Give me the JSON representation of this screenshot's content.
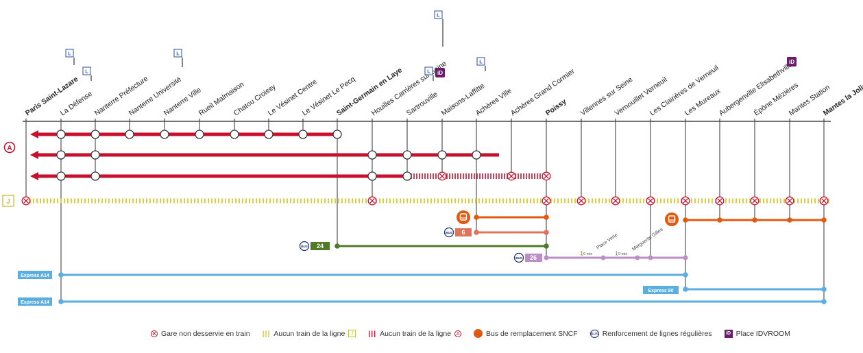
{
  "stations": [
    {
      "name": "Paris Saint-Lazare",
      "bold": true
    },
    {
      "name": "La Défense",
      "bold": false
    },
    {
      "name": "Nanterre Préfecture",
      "bold": false
    },
    {
      "name": "Nanterre Université",
      "bold": false
    },
    {
      "name": "Nanterre Ville",
      "bold": false
    },
    {
      "name": "Rueil Malmaison",
      "bold": false
    },
    {
      "name": "Chatou Croissy",
      "bold": false
    },
    {
      "name": "Le Vésinet Centre",
      "bold": false
    },
    {
      "name": "Le Vésinet Le Pecq",
      "bold": false
    },
    {
      "name": "Saint-Germain en Laye",
      "bold": true
    },
    {
      "name": "Houilles Carrières sur Seine",
      "bold": false
    },
    {
      "name": "Sartrouville",
      "bold": false
    },
    {
      "name": "Maisons-Laffitte",
      "bold": false
    },
    {
      "name": "Achères Ville",
      "bold": false
    },
    {
      "name": "Achères Grand Cormier",
      "bold": false
    },
    {
      "name": "Poissy",
      "bold": true
    },
    {
      "name": "Villennes sur Seine",
      "bold": false
    },
    {
      "name": "Vernouillet Verneuil",
      "bold": false
    },
    {
      "name": "Les Clairières de Verneuil",
      "bold": false
    },
    {
      "name": "Les Mureaux",
      "bold": false
    },
    {
      "name": "Aubergenville Elisabethville",
      "bold": false
    },
    {
      "name": "Épône Mézières",
      "bold": false
    },
    {
      "name": "Mantes Station",
      "bold": false
    },
    {
      "name": "Mantes la Jolie",
      "bold": true
    }
  ],
  "line_badges": {
    "rer_a": "A",
    "line_j": "J",
    "line_l": "L",
    "idvroom": "iD"
  },
  "bus_routes": [
    {
      "label": "6",
      "color": "#e0745a"
    },
    {
      "label": "24",
      "color": "#4f7a28"
    },
    {
      "label": "26",
      "color": "#b98fc6"
    }
  ],
  "express_labels": {
    "a14_top": "Express A14",
    "a14_bottom": "Express A14",
    "e80": "Express 80"
  },
  "bus_icon_text": "BUS",
  "walk_notes": [
    {
      "time": "6 min",
      "place": "Place Verte"
    },
    {
      "time": "9 min",
      "place": "Marguerite Gilles"
    }
  ],
  "legend": {
    "not_served": "Gare non desservie en train",
    "no_train_j": "Aucun train de la ligne",
    "no_train_a": "Aucun train de la ligne",
    "bus_replacement": "Bus de remplacement SNCF",
    "regular_bus": "Renforcement de lignes régulières",
    "idvroom": "Place IDVROOM"
  },
  "colors": {
    "rer_a_red": "#c8102e",
    "line_j_yellow": "#d7c92c",
    "bus_orange": "#e05a10",
    "express_blue": "#5aaee0",
    "bus_green": "#4f7a28",
    "bus_lilac": "#b98fc6",
    "bus_salmon": "#e0745a",
    "badge_blue": "#3a5ea8",
    "idvroom_purple": "#6a1b6e"
  }
}
